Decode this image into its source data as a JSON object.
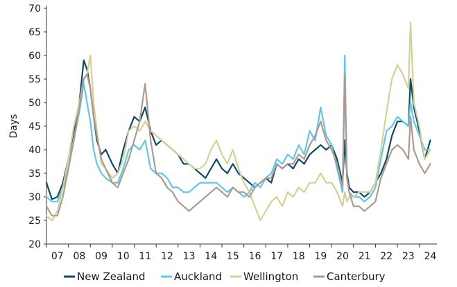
{
  "chart_data": {
    "type": "line",
    "ylabel": "Days",
    "xlabel": "",
    "ylim": [
      20,
      70
    ],
    "yticks": [
      20,
      25,
      30,
      35,
      40,
      45,
      50,
      55,
      60,
      65,
      70
    ],
    "xlim": [
      2006.5,
      2024.3
    ],
    "xtick_labels": [
      "07",
      "08",
      "09",
      "10",
      "11",
      "12",
      "13",
      "14",
      "15",
      "16",
      "17",
      "18",
      "19",
      "20",
      "21",
      "22",
      "23",
      "24"
    ],
    "legend_position": "bottom",
    "grid": false,
    "colors": {
      "New Zealand": "#0d4a66",
      "Auckland": "#5ec8ea",
      "Wellington": "#d4d096",
      "Canterbury": "#ad9a8c"
    },
    "series": [
      {
        "name": "New Zealand",
        "x": [
          2006.5,
          2006.75,
          2007.0,
          2007.25,
          2007.5,
          2007.75,
          2008.0,
          2008.2,
          2008.35,
          2008.5,
          2008.65,
          2008.8,
          2009.0,
          2009.2,
          2009.5,
          2009.75,
          2010.0,
          2010.25,
          2010.5,
          2010.75,
          2011.0,
          2011.25,
          2011.5,
          2011.75,
          2012.0,
          2012.25,
          2012.5,
          2012.75,
          2013.0,
          2013.25,
          2013.5,
          2013.75,
          2014.0,
          2014.25,
          2014.5,
          2014.75,
          2015.0,
          2015.25,
          2015.5,
          2015.75,
          2016.0,
          2016.25,
          2016.5,
          2016.75,
          2017.0,
          2017.25,
          2017.5,
          2017.75,
          2018.0,
          2018.25,
          2018.5,
          2018.75,
          2019.0,
          2019.25,
          2019.5,
          2019.75,
          2020.0,
          2020.1,
          2020.2,
          2020.3,
          2020.5,
          2020.75,
          2021.0,
          2021.25,
          2021.5,
          2021.75,
          2022.0,
          2022.25,
          2022.5,
          2022.75,
          2023.0,
          2023.1,
          2023.25,
          2023.5,
          2023.75,
          2024.0
        ],
        "values": [
          33,
          29.5,
          30,
          33,
          38,
          44,
          50,
          59,
          57,
          53,
          47,
          42,
          39,
          40,
          37,
          35,
          40,
          44,
          47,
          46,
          49,
          44,
          41,
          42,
          41,
          40,
          39,
          37,
          37,
          36,
          35,
          34,
          36,
          38,
          36,
          35,
          37,
          35,
          34,
          33,
          32,
          33,
          34,
          33,
          37,
          36,
          37,
          36,
          38,
          37,
          39,
          40,
          41,
          40,
          41,
          38,
          33,
          42,
          35,
          32,
          31,
          31,
          30,
          31,
          33,
          35,
          38,
          43,
          46,
          46,
          45,
          55,
          49,
          44,
          38,
          42
        ]
      },
      {
        "name": "Auckland",
        "x": [
          2006.5,
          2006.75,
          2007.0,
          2007.25,
          2007.5,
          2007.75,
          2008.0,
          2008.2,
          2008.35,
          2008.5,
          2008.65,
          2008.8,
          2009.0,
          2009.2,
          2009.5,
          2009.75,
          2010.0,
          2010.25,
          2010.5,
          2010.75,
          2011.0,
          2011.25,
          2011.5,
          2011.75,
          2012.0,
          2012.25,
          2012.5,
          2012.75,
          2013.0,
          2013.25,
          2013.5,
          2013.75,
          2014.0,
          2014.25,
          2014.5,
          2014.75,
          2015.0,
          2015.25,
          2015.5,
          2015.75,
          2016.0,
          2016.25,
          2016.5,
          2016.75,
          2017.0,
          2017.25,
          2017.5,
          2017.75,
          2018.0,
          2018.25,
          2018.5,
          2018.75,
          2019.0,
          2019.25,
          2019.5,
          2019.75,
          2020.0,
          2020.1,
          2020.2,
          2020.3,
          2020.5,
          2020.75,
          2021.0,
          2021.25,
          2021.5,
          2021.75,
          2022.0,
          2022.25,
          2022.5,
          2022.75,
          2023.0,
          2023.1,
          2023.25,
          2023.5,
          2023.75,
          2024.0
        ],
        "values": [
          30,
          29,
          29,
          32,
          36,
          42,
          48,
          54,
          50,
          46,
          40,
          37,
          35,
          34,
          33,
          33,
          36,
          40,
          41,
          40,
          42,
          36,
          35,
          35,
          34,
          32,
          32,
          31,
          31,
          32,
          33,
          33,
          33,
          33,
          32,
          31,
          32,
          31,
          30,
          31,
          33,
          32,
          34,
          35,
          38,
          37,
          39,
          38,
          41,
          39,
          44,
          42,
          49,
          43,
          41,
          36,
          31,
          60,
          34,
          31,
          30,
          30,
          29,
          30,
          32,
          38,
          44,
          45,
          47,
          46,
          45,
          50,
          46,
          43,
          40,
          40
        ]
      },
      {
        "name": "Wellington",
        "x": [
          2006.5,
          2006.75,
          2007.0,
          2007.25,
          2007.5,
          2007.75,
          2008.0,
          2008.2,
          2008.35,
          2008.5,
          2008.65,
          2008.8,
          2009.0,
          2009.2,
          2009.5,
          2009.75,
          2010.0,
          2010.25,
          2010.5,
          2010.75,
          2011.0,
          2011.25,
          2011.5,
          2011.75,
          2012.0,
          2012.25,
          2012.5,
          2012.75,
          2013.0,
          2013.25,
          2013.5,
          2013.75,
          2014.0,
          2014.25,
          2014.5,
          2014.75,
          2015.0,
          2015.25,
          2015.5,
          2015.75,
          2016.0,
          2016.25,
          2016.5,
          2016.75,
          2017.0,
          2017.25,
          2017.5,
          2017.75,
          2018.0,
          2018.25,
          2018.5,
          2018.75,
          2019.0,
          2019.25,
          2019.5,
          2019.75,
          2020.0,
          2020.1,
          2020.2,
          2020.3,
          2020.5,
          2020.75,
          2021.0,
          2021.25,
          2021.5,
          2021.75,
          2022.0,
          2022.25,
          2022.5,
          2022.75,
          2023.0,
          2023.1,
          2023.25,
          2023.5,
          2023.75,
          2024.0
        ],
        "values": [
          26,
          25,
          27,
          32,
          38,
          45,
          50,
          55,
          56,
          60,
          50,
          44,
          37,
          36,
          34,
          35,
          38,
          44,
          45,
          44,
          46,
          44,
          43,
          42,
          41,
          40,
          39,
          38,
          37,
          36,
          36,
          37,
          40,
          42,
          39,
          37,
          40,
          36,
          33,
          31,
          28,
          25,
          27,
          29,
          30,
          28,
          31,
          30,
          32,
          31,
          33,
          33,
          35,
          33,
          33,
          31,
          28,
          31,
          29,
          30,
          30,
          31,
          31,
          31,
          33,
          40,
          48,
          55,
          58,
          56,
          53,
          67,
          50,
          45,
          38,
          40
        ]
      },
      {
        "name": "Canterbury",
        "x": [
          2006.5,
          2006.75,
          2007.0,
          2007.25,
          2007.5,
          2007.75,
          2008.0,
          2008.2,
          2008.35,
          2008.5,
          2008.65,
          2008.8,
          2009.0,
          2009.2,
          2009.5,
          2009.75,
          2010.0,
          2010.25,
          2010.5,
          2010.75,
          2011.0,
          2011.25,
          2011.5,
          2011.75,
          2012.0,
          2012.25,
          2012.5,
          2012.75,
          2013.0,
          2013.25,
          2013.5,
          2013.75,
          2014.0,
          2014.25,
          2014.5,
          2014.75,
          2015.0,
          2015.25,
          2015.5,
          2015.75,
          2016.0,
          2016.25,
          2016.5,
          2016.75,
          2017.0,
          2017.25,
          2017.5,
          2017.75,
          2018.0,
          2018.25,
          2018.5,
          2018.75,
          2019.0,
          2019.25,
          2019.5,
          2019.75,
          2020.0,
          2020.1,
          2020.2,
          2020.3,
          2020.5,
          2020.75,
          2021.0,
          2021.25,
          2021.5,
          2021.75,
          2022.0,
          2022.25,
          2022.5,
          2022.75,
          2023.0,
          2023.1,
          2023.25,
          2023.5,
          2023.75,
          2024.0
        ],
        "values": [
          28,
          26,
          26,
          30,
          36,
          42,
          49,
          55,
          56,
          53,
          47,
          43,
          38,
          36,
          33,
          32,
          35,
          38,
          42,
          46,
          54,
          42,
          35,
          34,
          32,
          31,
          29,
          28,
          27,
          28,
          29,
          30,
          31,
          32,
          31,
          30,
          32,
          31,
          31,
          30,
          32,
          33,
          34,
          34,
          37,
          36,
          37,
          37,
          39,
          38,
          41,
          43,
          46,
          42,
          40,
          37,
          32,
          56,
          34,
          31,
          28,
          28,
          27,
          28,
          29,
          34,
          37,
          40,
          41,
          40,
          38,
          47,
          40,
          37,
          35,
          37
        ]
      }
    ]
  }
}
